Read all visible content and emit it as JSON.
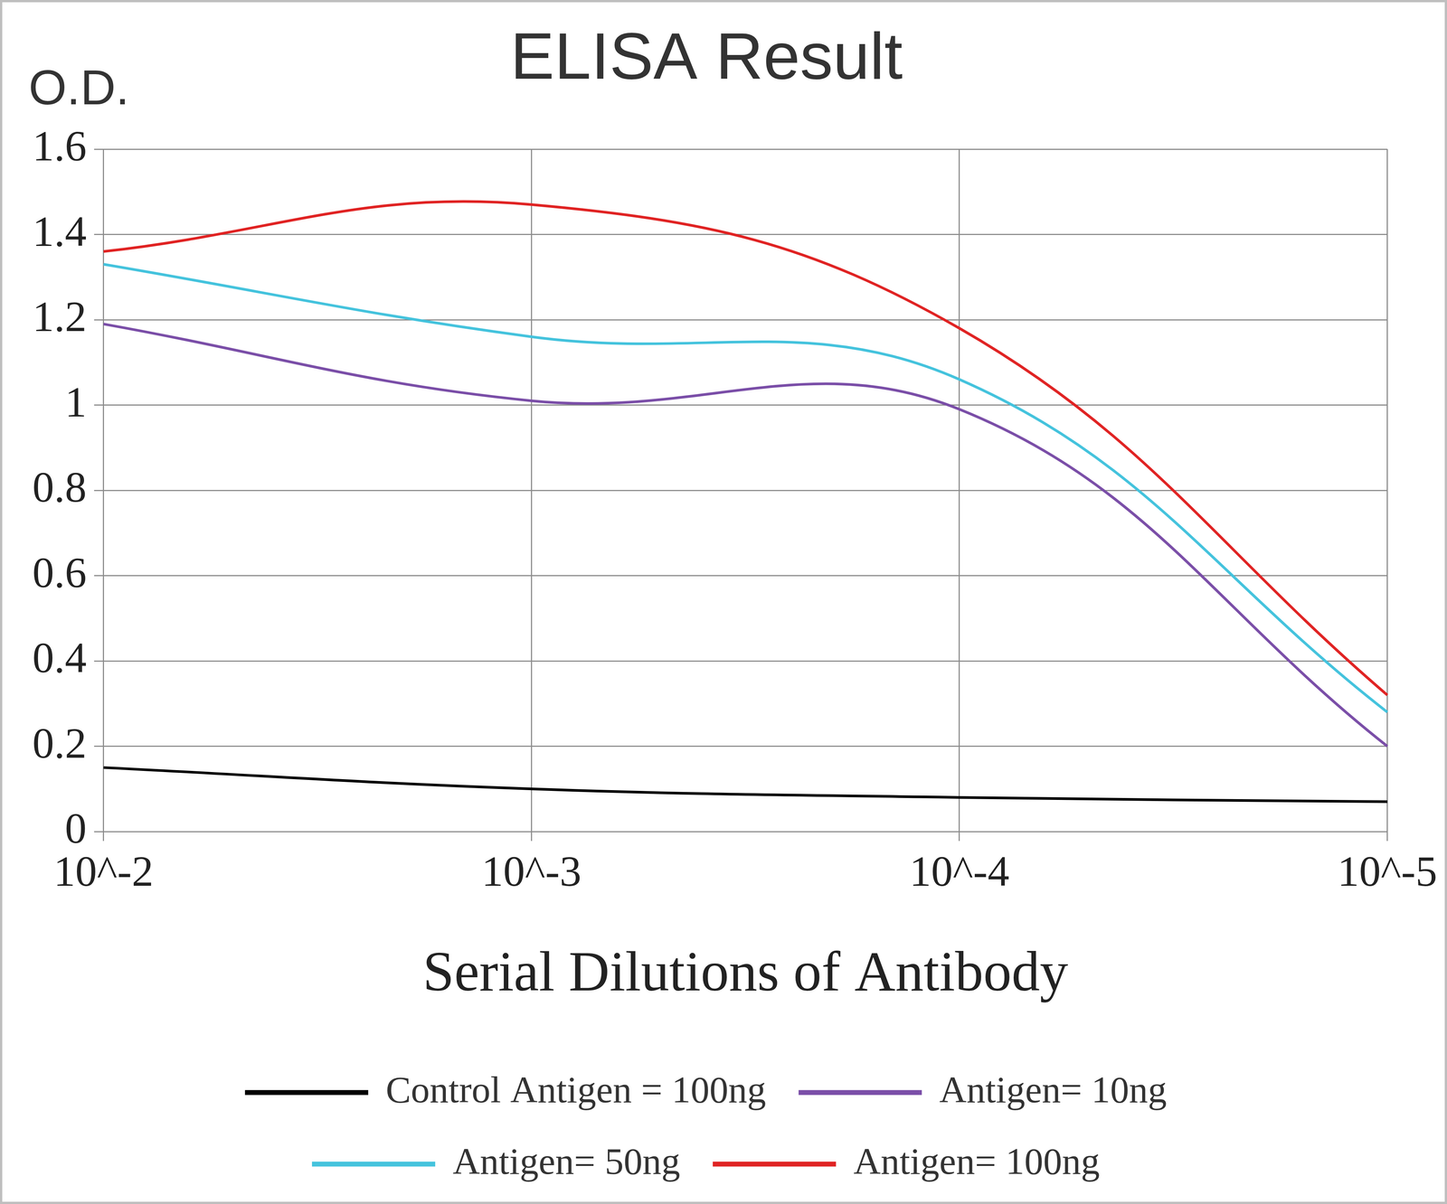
{
  "chart_data": {
    "type": "line",
    "title": "ELISA Result",
    "y_label": "O.D.",
    "x_label": "Serial Dilutions of Antibody",
    "categories": [
      "10^-2",
      "10^-3",
      "10^-4",
      "10^-5"
    ],
    "series": [
      {
        "name": "Control Antigen = 100ng",
        "color": "#000000",
        "values": [
          0.15,
          0.1,
          0.08,
          0.07
        ]
      },
      {
        "name": "Antigen= 10ng",
        "color": "#7b4fa8",
        "values": [
          1.19,
          1.01,
          0.99,
          0.2
        ]
      },
      {
        "name": "Antigen= 50ng",
        "color": "#45c3dd",
        "values": [
          1.33,
          1.16,
          1.06,
          0.28
        ]
      },
      {
        "name": "Antigen= 100ng",
        "color": "#e02424",
        "values": [
          1.36,
          1.47,
          1.18,
          0.32
        ]
      }
    ],
    "ylim": [
      0,
      1.6
    ],
    "yticks": [
      0,
      0.2,
      0.4,
      0.6,
      0.8,
      1,
      1.2,
      1.4,
      1.6
    ],
    "grid": true,
    "legend": "bottom",
    "marker": "none"
  }
}
